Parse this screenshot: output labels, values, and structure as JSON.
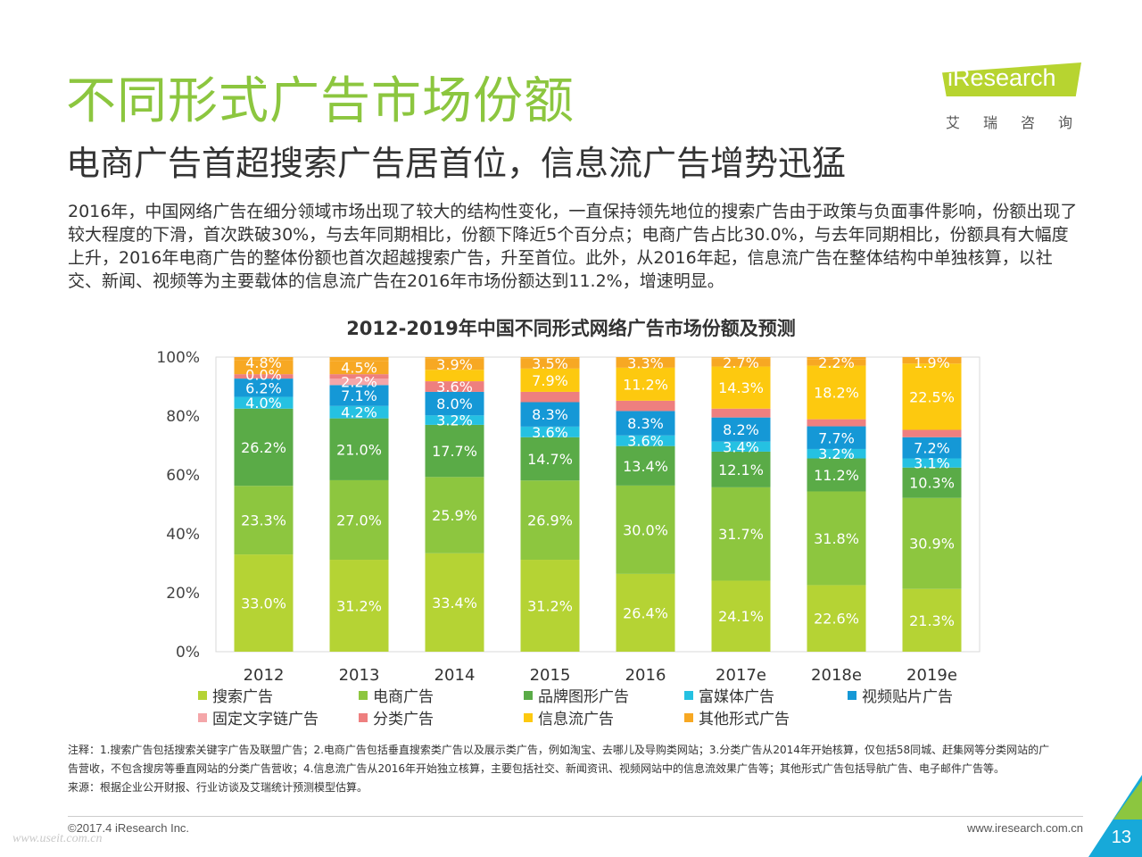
{
  "page": {
    "title": "不同形式广告市场份额",
    "subtitle": "电商广告首超搜索广告居首位，信息流广告增势迅猛",
    "intro": "2016年，中国网络广告在细分领域市场出现了较大的结构性变化，一直保持领先地位的搜索广告由于政策与负面事件影响，份额出现了较大程度的下滑，首次跌破30%，与去年同期相比，份额下降近5个百分点；电商广告占比30.0%，与去年同期相比，份额具有大幅度上升，2016年电商广告的整体份额也首次超越搜索广告，升至首位。此外，从2016年起，信息流广告在整体结构中单独核算，以社交、新闻、视频等为主要载体的信息流广告在2016年市场份额达到11.2%，增速明显。",
    "logo_text": "iResearch",
    "logo_sub": "艾瑞咨询",
    "notes": [
      "注释：1.搜索广告包括搜索关键字广告及联盟广告；2.电商广告包括垂直搜索类广告以及展示类广告，例如淘宝、去哪儿及导购类网站；3.分类广告从2014年开始核算，仅包括58同城、赶集网等分类网站的广告营收，不包含搜房等垂直网站的分类广告营收；4.信息流广告从2016年开始独立核算，主要包括社交、新闻资讯、视频网站中的信息流效果广告等；其他形式广告包括导航广告、电子邮件广告等。",
      "来源：根据企业公开财报、行业访谈及艾瑞统计预测模型估算。"
    ],
    "copyright": "©2017.4 iResearch Inc.",
    "website": "www.iresearch.com.cn",
    "watermark": "www.useit.com.cn",
    "page_number": "13"
  },
  "chart_data": {
    "type": "bar",
    "stacked": true,
    "title": "2012-2019年中国不同形式网络广告市场份额及预测",
    "categories": [
      "2012",
      "2013",
      "2014",
      "2015",
      "2016",
      "2017e",
      "2018e",
      "2019e"
    ],
    "ylim": [
      0,
      100
    ],
    "yticks": [
      "0%",
      "20%",
      "40%",
      "60%",
      "80%",
      "100%"
    ],
    "legend_position": "bottom",
    "series": [
      {
        "name": "搜索广告",
        "color": "#b5d334",
        "values": [
          33.0,
          31.2,
          33.4,
          31.2,
          26.4,
          24.1,
          22.6,
          21.3
        ]
      },
      {
        "name": "电商广告",
        "color": "#8dc63f",
        "values": [
          23.3,
          27.0,
          25.9,
          26.9,
          30.0,
          31.7,
          31.8,
          30.9
        ]
      },
      {
        "name": "品牌图形广告",
        "color": "#5aab47",
        "values": [
          26.2,
          21.0,
          17.7,
          14.7,
          13.4,
          12.1,
          11.2,
          10.3
        ]
      },
      {
        "name": "富媒体广告",
        "color": "#25c1e2",
        "values": [
          4.0,
          4.2,
          3.2,
          3.6,
          3.6,
          3.4,
          3.2,
          3.1
        ]
      },
      {
        "name": "视频贴片广告",
        "color": "#1598d6",
        "values": [
          6.2,
          7.1,
          8.0,
          8.3,
          8.3,
          8.2,
          7.7,
          7.2
        ]
      },
      {
        "name": "固定文字链广告",
        "color": "#f4a6a9",
        "values": [
          0.0,
          2.2,
          0.0,
          0.0,
          0.0,
          0.0,
          0.0,
          0.0
        ]
      },
      {
        "name": "分类广告",
        "color": "#ee7f7f",
        "values": [
          1.5,
          1.5,
          3.6,
          3.5,
          3.5,
          3.0,
          2.4,
          2.5
        ]
      },
      {
        "name": "信息流广告",
        "color": "#fdc90f",
        "values": [
          0.0,
          0.0,
          3.9,
          7.9,
          11.2,
          14.3,
          18.2,
          22.5
        ]
      },
      {
        "name": "其他形式广告",
        "color": "#f7a823",
        "values": [
          4.8,
          4.5,
          3.9,
          3.5,
          3.3,
          2.7,
          2.2,
          1.9
        ]
      }
    ],
    "data_labels": [
      [
        {
          "s": 0,
          "t": "33.0%"
        },
        {
          "s": 1,
          "t": "23.3%"
        },
        {
          "s": 2,
          "t": "26.2%"
        },
        {
          "s": 3,
          "t": "4.0%"
        },
        {
          "s": 4,
          "t": "6.2%"
        },
        {
          "s": 5,
          "t": "0.0%"
        },
        {
          "s": 8,
          "t": "4.8%"
        }
      ],
      [
        {
          "s": 0,
          "t": "31.2%"
        },
        {
          "s": 1,
          "t": "27.0%"
        },
        {
          "s": 2,
          "t": "21.0%"
        },
        {
          "s": 3,
          "t": "4.2%"
        },
        {
          "s": 4,
          "t": "7.1%"
        },
        {
          "s": 5,
          "t": "2.2%"
        },
        {
          "s": 8,
          "t": "4.5%"
        }
      ],
      [
        {
          "s": 0,
          "t": "33.4%"
        },
        {
          "s": 1,
          "t": "25.9%"
        },
        {
          "s": 2,
          "t": "17.7%"
        },
        {
          "s": 3,
          "t": "3.2%"
        },
        {
          "s": 4,
          "t": "8.0%"
        },
        {
          "s": 6,
          "t": "3.6%"
        },
        {
          "s": 8,
          "t": "3.9%"
        }
      ],
      [
        {
          "s": 0,
          "t": "31.2%"
        },
        {
          "s": 1,
          "t": "26.9%"
        },
        {
          "s": 2,
          "t": "14.7%"
        },
        {
          "s": 3,
          "t": "3.6%"
        },
        {
          "s": 4,
          "t": "8.3%"
        },
        {
          "s": 7,
          "t": "7.9%"
        },
        {
          "s": 8,
          "t": "3.5%"
        }
      ],
      [
        {
          "s": 0,
          "t": "26.4%"
        },
        {
          "s": 1,
          "t": "30.0%"
        },
        {
          "s": 2,
          "t": "13.4%"
        },
        {
          "s": 3,
          "t": "3.6%"
        },
        {
          "s": 4,
          "t": "8.3%"
        },
        {
          "s": 7,
          "t": "11.2%"
        },
        {
          "s": 8,
          "t": "3.3%"
        }
      ],
      [
        {
          "s": 0,
          "t": "24.1%"
        },
        {
          "s": 1,
          "t": "31.7%"
        },
        {
          "s": 2,
          "t": "12.1%"
        },
        {
          "s": 3,
          "t": "3.4%"
        },
        {
          "s": 4,
          "t": "8.2%"
        },
        {
          "s": 7,
          "t": "14.3%"
        },
        {
          "s": 8,
          "t": "2.7%"
        }
      ],
      [
        {
          "s": 0,
          "t": "22.6%"
        },
        {
          "s": 1,
          "t": "31.8%"
        },
        {
          "s": 2,
          "t": "11.2%"
        },
        {
          "s": 3,
          "t": "3.2%"
        },
        {
          "s": 4,
          "t": "7.7%"
        },
        {
          "s": 7,
          "t": "18.2%"
        },
        {
          "s": 8,
          "t": "2.2%"
        }
      ],
      [
        {
          "s": 0,
          "t": "21.3%"
        },
        {
          "s": 1,
          "t": "30.9%"
        },
        {
          "s": 2,
          "t": "10.3%"
        },
        {
          "s": 3,
          "t": "3.1%"
        },
        {
          "s": 4,
          "t": "7.2%"
        },
        {
          "s": 7,
          "t": "22.5%"
        },
        {
          "s": 8,
          "t": "1.9%"
        }
      ]
    ]
  }
}
